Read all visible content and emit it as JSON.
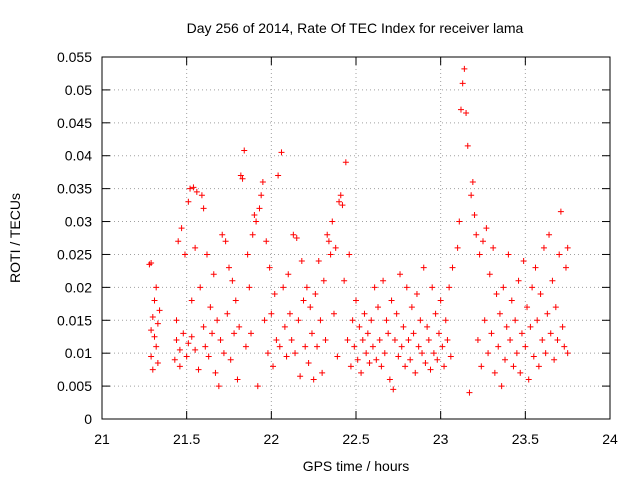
{
  "chart_data": {
    "type": "scatter",
    "title": "Day 256 of 2014, Rate Of TEC Index for receiver lama",
    "xlabel": "GPS time / hours",
    "ylabel": "ROTI / TECUs",
    "xlim": [
      21,
      24
    ],
    "ylim": [
      0,
      0.055
    ],
    "xticks": [
      21,
      21.5,
      22,
      22.5,
      23,
      23.5,
      24
    ],
    "xtick_labels": [
      "21",
      "21.5",
      "22",
      "22.5",
      "23",
      "23.5",
      "24"
    ],
    "yticks": [
      0,
      0.005,
      0.01,
      0.015,
      0.02,
      0.025,
      0.03,
      0.035,
      0.04,
      0.045,
      0.05,
      0.055
    ],
    "ytick_labels": [
      "0",
      "0.005",
      "0.01",
      "0.015",
      "0.02",
      "0.025",
      "0.03",
      "0.035",
      "0.04",
      "0.045",
      "0.05",
      "0.055"
    ],
    "grid": true,
    "marker": "+",
    "color": "#ff0000",
    "series": [
      {
        "name": "ROTI",
        "points": [
          [
            21.28,
            0.0235
          ],
          [
            21.29,
            0.0237
          ],
          [
            21.29,
            0.0135
          ],
          [
            21.29,
            0.0095
          ],
          [
            21.3,
            0.0075
          ],
          [
            21.3,
            0.0155
          ],
          [
            21.31,
            0.018
          ],
          [
            21.31,
            0.0125
          ],
          [
            21.32,
            0.02
          ],
          [
            21.32,
            0.011
          ],
          [
            21.33,
            0.0145
          ],
          [
            21.33,
            0.0085
          ],
          [
            21.34,
            0.0165
          ],
          [
            21.43,
            0.009
          ],
          [
            21.44,
            0.012
          ],
          [
            21.44,
            0.015
          ],
          [
            21.45,
            0.027
          ],
          [
            21.46,
            0.008
          ],
          [
            21.46,
            0.0105
          ],
          [
            21.47,
            0.029
          ],
          [
            21.48,
            0.013
          ],
          [
            21.49,
            0.025
          ],
          [
            21.5,
            0.0095
          ],
          [
            21.51,
            0.033
          ],
          [
            21.51,
            0.0115
          ],
          [
            21.52,
            0.035
          ],
          [
            21.53,
            0.018
          ],
          [
            21.53,
            0.0125
          ],
          [
            21.54,
            0.0352
          ],
          [
            21.55,
            0.026
          ],
          [
            21.55,
            0.0105
          ],
          [
            21.56,
            0.0345
          ],
          [
            21.57,
            0.0075
          ],
          [
            21.58,
            0.02
          ],
          [
            21.59,
            0.034
          ],
          [
            21.6,
            0.014
          ],
          [
            21.6,
            0.032
          ],
          [
            21.61,
            0.011
          ],
          [
            21.62,
            0.025
          ],
          [
            21.63,
            0.0095
          ],
          [
            21.64,
            0.017
          ],
          [
            21.65,
            0.013
          ],
          [
            21.66,
            0.022
          ],
          [
            21.67,
            0.007
          ],
          [
            21.68,
            0.015
          ],
          [
            21.69,
            0.005
          ],
          [
            21.7,
            0.012
          ],
          [
            21.71,
            0.028
          ],
          [
            21.72,
            0.01
          ],
          [
            21.73,
            0.027
          ],
          [
            21.74,
            0.016
          ],
          [
            21.75,
            0.023
          ],
          [
            21.76,
            0.009
          ],
          [
            21.77,
            0.021
          ],
          [
            21.78,
            0.013
          ],
          [
            21.79,
            0.018
          ],
          [
            21.8,
            0.006
          ],
          [
            21.81,
            0.014
          ],
          [
            21.82,
            0.037
          ],
          [
            21.83,
            0.0365
          ],
          [
            21.84,
            0.0408
          ],
          [
            21.85,
            0.011
          ],
          [
            21.86,
            0.025
          ],
          [
            21.87,
            0.02
          ],
          [
            21.88,
            0.013
          ],
          [
            21.89,
            0.028
          ],
          [
            21.9,
            0.031
          ],
          [
            21.91,
            0.03
          ],
          [
            21.92,
            0.005
          ],
          [
            21.93,
            0.032
          ],
          [
            21.94,
            0.034
          ],
          [
            21.95,
            0.036
          ],
          [
            21.96,
            0.015
          ],
          [
            21.97,
            0.027
          ],
          [
            21.98,
            0.01
          ],
          [
            21.99,
            0.023
          ],
          [
            22.0,
            0.016
          ],
          [
            22.01,
            0.008
          ],
          [
            22.02,
            0.019
          ],
          [
            22.03,
            0.012
          ],
          [
            22.04,
            0.037
          ],
          [
            22.05,
            0.011
          ],
          [
            22.06,
            0.0405
          ],
          [
            22.07,
            0.02
          ],
          [
            22.08,
            0.014
          ],
          [
            22.09,
            0.0095
          ],
          [
            22.1,
            0.022
          ],
          [
            22.11,
            0.016
          ],
          [
            22.12,
            0.012
          ],
          [
            22.13,
            0.028
          ],
          [
            22.14,
            0.01
          ],
          [
            22.15,
            0.0275
          ],
          [
            22.16,
            0.015
          ],
          [
            22.17,
            0.0065
          ],
          [
            22.18,
            0.024
          ],
          [
            22.19,
            0.018
          ],
          [
            22.2,
            0.011
          ],
          [
            22.21,
            0.02
          ],
          [
            22.22,
            0.0085
          ],
          [
            22.23,
            0.017
          ],
          [
            22.24,
            0.013
          ],
          [
            22.25,
            0.006
          ],
          [
            22.26,
            0.019
          ],
          [
            22.27,
            0.011
          ],
          [
            22.28,
            0.024
          ],
          [
            22.29,
            0.015
          ],
          [
            22.3,
            0.007
          ],
          [
            22.31,
            0.021
          ],
          [
            22.32,
            0.012
          ],
          [
            22.33,
            0.028
          ],
          [
            22.34,
            0.027
          ],
          [
            22.35,
            0.025
          ],
          [
            22.36,
            0.03
          ],
          [
            22.37,
            0.016
          ],
          [
            22.38,
            0.026
          ],
          [
            22.39,
            0.0095
          ],
          [
            22.4,
            0.033
          ],
          [
            22.41,
            0.034
          ],
          [
            22.42,
            0.0325
          ],
          [
            22.43,
            0.021
          ],
          [
            22.44,
            0.039
          ],
          [
            22.45,
            0.012
          ],
          [
            22.46,
            0.025
          ],
          [
            22.47,
            0.008
          ],
          [
            22.48,
            0.015
          ],
          [
            22.49,
            0.011
          ],
          [
            22.5,
            0.018
          ],
          [
            22.51,
            0.009
          ],
          [
            22.52,
            0.014
          ],
          [
            22.53,
            0.007
          ],
          [
            22.54,
            0.012
          ],
          [
            22.55,
            0.016
          ],
          [
            22.56,
            0.01
          ],
          [
            22.57,
            0.013
          ],
          [
            22.58,
            0.0085
          ],
          [
            22.59,
            0.015
          ],
          [
            22.6,
            0.011
          ],
          [
            22.61,
            0.02
          ],
          [
            22.62,
            0.009
          ],
          [
            22.63,
            0.017
          ],
          [
            22.64,
            0.012
          ],
          [
            22.65,
            0.008
          ],
          [
            22.66,
            0.021
          ],
          [
            22.67,
            0.01
          ],
          [
            22.68,
            0.015
          ],
          [
            22.69,
            0.013
          ],
          [
            22.7,
            0.006
          ],
          [
            22.71,
            0.018
          ],
          [
            22.72,
            0.0045
          ],
          [
            22.73,
            0.012
          ],
          [
            22.74,
            0.016
          ],
          [
            22.75,
            0.0095
          ],
          [
            22.76,
            0.022
          ],
          [
            22.77,
            0.011
          ],
          [
            22.78,
            0.014
          ],
          [
            22.79,
            0.008
          ],
          [
            22.8,
            0.02
          ],
          [
            22.81,
            0.012
          ],
          [
            22.82,
            0.009
          ],
          [
            22.83,
            0.017
          ],
          [
            22.84,
            0.013
          ],
          [
            22.85,
            0.007
          ],
          [
            22.86,
            0.019
          ],
          [
            22.87,
            0.011
          ],
          [
            22.88,
            0.015
          ],
          [
            22.89,
            0.01
          ],
          [
            22.9,
            0.023
          ],
          [
            22.91,
            0.0085
          ],
          [
            22.92,
            0.014
          ],
          [
            22.93,
            0.012
          ],
          [
            22.94,
            0.0075
          ],
          [
            22.95,
            0.02
          ],
          [
            22.96,
            0.01
          ],
          [
            22.97,
            0.016
          ],
          [
            22.98,
            0.009
          ],
          [
            22.99,
            0.013
          ],
          [
            23.0,
            0.018
          ],
          [
            23.01,
            0.011
          ],
          [
            23.02,
            0.008
          ],
          [
            23.03,
            0.015
          ],
          [
            23.04,
            0.012
          ],
          [
            23.05,
            0.02
          ],
          [
            23.06,
            0.0095
          ],
          [
            23.07,
            0.023
          ],
          [
            23.1,
            0.026
          ],
          [
            23.11,
            0.03
          ],
          [
            23.12,
            0.047
          ],
          [
            23.13,
            0.051
          ],
          [
            23.14,
            0.0532
          ],
          [
            23.15,
            0.0465
          ],
          [
            23.16,
            0.0415
          ],
          [
            23.17,
            0.004
          ],
          [
            23.18,
            0.034
          ],
          [
            23.19,
            0.036
          ],
          [
            23.2,
            0.031
          ],
          [
            23.21,
            0.028
          ],
          [
            23.22,
            0.012
          ],
          [
            23.23,
            0.025
          ],
          [
            23.24,
            0.008
          ],
          [
            23.25,
            0.027
          ],
          [
            23.26,
            0.015
          ],
          [
            23.27,
            0.029
          ],
          [
            23.28,
            0.01
          ],
          [
            23.29,
            0.022
          ],
          [
            23.3,
            0.013
          ],
          [
            23.31,
            0.026
          ],
          [
            23.32,
            0.007
          ],
          [
            23.33,
            0.019
          ],
          [
            23.34,
            0.011
          ],
          [
            23.35,
            0.016
          ],
          [
            23.36,
            0.005
          ],
          [
            23.37,
            0.02
          ],
          [
            23.38,
            0.009
          ],
          [
            23.39,
            0.014
          ],
          [
            23.4,
            0.025
          ],
          [
            23.41,
            0.012
          ],
          [
            23.42,
            0.018
          ],
          [
            23.43,
            0.008
          ],
          [
            23.44,
            0.015
          ],
          [
            23.45,
            0.01
          ],
          [
            23.46,
            0.021
          ],
          [
            23.47,
            0.007
          ],
          [
            23.48,
            0.013
          ],
          [
            23.49,
            0.024
          ],
          [
            23.5,
            0.011
          ],
          [
            23.51,
            0.017
          ],
          [
            23.52,
            0.006
          ],
          [
            23.53,
            0.014
          ],
          [
            23.54,
            0.02
          ],
          [
            23.55,
            0.0095
          ],
          [
            23.56,
            0.023
          ],
          [
            23.57,
            0.015
          ],
          [
            23.58,
            0.008
          ],
          [
            23.59,
            0.019
          ],
          [
            23.6,
            0.012
          ],
          [
            23.61,
            0.026
          ],
          [
            23.62,
            0.01
          ],
          [
            23.63,
            0.016
          ],
          [
            23.64,
            0.028
          ],
          [
            23.65,
            0.013
          ],
          [
            23.66,
            0.021
          ],
          [
            23.67,
            0.009
          ],
          [
            23.68,
            0.017
          ],
          [
            23.69,
            0.012
          ],
          [
            23.7,
            0.025
          ],
          [
            23.71,
            0.0315
          ],
          [
            23.72,
            0.014
          ],
          [
            23.73,
            0.011
          ],
          [
            23.74,
            0.023
          ],
          [
            23.75,
            0.026
          ],
          [
            23.75,
            0.01
          ]
        ]
      }
    ]
  }
}
